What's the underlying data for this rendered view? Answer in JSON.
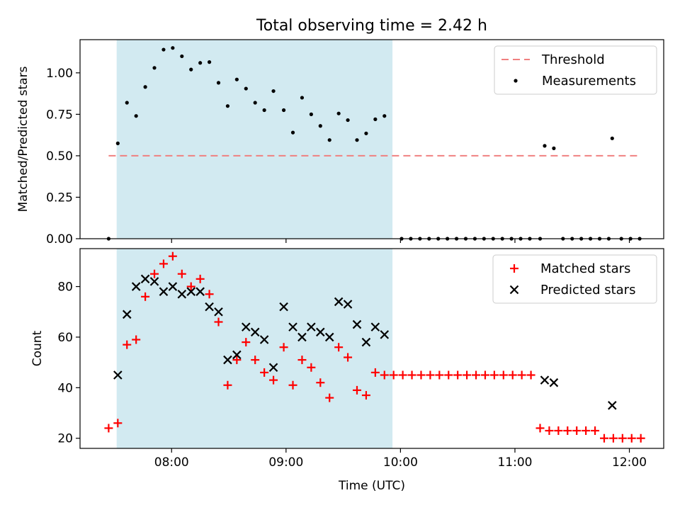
{
  "chart_data": {
    "type": "scatter",
    "title": "Total observing time = 2.42 h",
    "xlabel": "Time (UTC)",
    "x_ticks": [
      "08:00",
      "09:00",
      "10:00",
      "11:00",
      "12:00"
    ],
    "x_tick_hours": [
      8,
      9,
      10,
      11,
      12
    ],
    "xlim_hours": [
      7.2,
      12.3
    ],
    "shaded_interval_hours": [
      7.52,
      9.93
    ],
    "shade_color": "#add8e6",
    "top": {
      "ylabel": "Matched/Predicted stars",
      "ylim": [
        0,
        1.2
      ],
      "y_ticks": [
        "0.00",
        "0.25",
        "0.50",
        "0.75",
        "1.00"
      ],
      "y_tick_values": [
        0,
        0.25,
        0.5,
        0.75,
        1.0
      ],
      "threshold": {
        "name": "Threshold",
        "value": 0.5,
        "x_range_hours": [
          7.45,
          12.1
        ],
        "color": "#f08080"
      },
      "measurements": {
        "name": "Measurements",
        "color": "#000000",
        "points": [
          [
            7.45,
            0.0
          ],
          [
            7.53,
            0.575
          ],
          [
            7.61,
            0.82
          ],
          [
            7.69,
            0.74
          ],
          [
            7.77,
            0.915
          ],
          [
            7.85,
            1.03
          ],
          [
            7.93,
            1.14
          ],
          [
            8.01,
            1.15
          ],
          [
            8.09,
            1.1
          ],
          [
            8.17,
            1.02
          ],
          [
            8.25,
            1.06
          ],
          [
            8.33,
            1.065
          ],
          [
            8.41,
            0.94
          ],
          [
            8.49,
            0.8
          ],
          [
            8.57,
            0.96
          ],
          [
            8.65,
            0.905
          ],
          [
            8.73,
            0.82
          ],
          [
            8.81,
            0.775
          ],
          [
            8.89,
            0.89
          ],
          [
            8.98,
            0.775
          ],
          [
            9.06,
            0.64
          ],
          [
            9.14,
            0.85
          ],
          [
            9.22,
            0.75
          ],
          [
            9.3,
            0.68
          ],
          [
            9.38,
            0.595
          ],
          [
            9.46,
            0.755
          ],
          [
            9.54,
            0.715
          ],
          [
            9.62,
            0.595
          ],
          [
            9.7,
            0.635
          ],
          [
            9.78,
            0.72
          ],
          [
            9.86,
            0.74
          ],
          [
            10.01,
            0.0
          ],
          [
            10.09,
            0.0
          ],
          [
            10.17,
            0.0
          ],
          [
            10.25,
            0.0
          ],
          [
            10.33,
            0.0
          ],
          [
            10.41,
            0.0
          ],
          [
            10.49,
            0.0
          ],
          [
            10.57,
            0.0
          ],
          [
            10.65,
            0.0
          ],
          [
            10.73,
            0.0
          ],
          [
            10.81,
            0.0
          ],
          [
            10.89,
            0.0
          ],
          [
            10.97,
            0.0
          ],
          [
            11.05,
            0.0
          ],
          [
            11.13,
            0.0
          ],
          [
            11.22,
            0.0
          ],
          [
            11.26,
            0.56
          ],
          [
            11.34,
            0.545
          ],
          [
            11.42,
            0.0
          ],
          [
            11.5,
            0.0
          ],
          [
            11.58,
            0.0
          ],
          [
            11.66,
            0.0
          ],
          [
            11.74,
            0.0
          ],
          [
            11.82,
            0.0
          ],
          [
            11.85,
            0.605
          ],
          [
            11.93,
            0.0
          ],
          [
            12.01,
            0.0
          ],
          [
            12.09,
            0.0
          ]
        ]
      }
    },
    "bottom": {
      "ylabel": "Count",
      "ylim": [
        16,
        95
      ],
      "y_ticks": [
        "20",
        "40",
        "60",
        "80"
      ],
      "y_tick_values": [
        20,
        40,
        60,
        80
      ],
      "matched": {
        "name": "Matched stars",
        "color": "#ff0000",
        "points": [
          [
            7.45,
            24
          ],
          [
            7.53,
            26
          ],
          [
            7.61,
            57
          ],
          [
            7.69,
            59
          ],
          [
            7.77,
            76
          ],
          [
            7.85,
            85
          ],
          [
            7.93,
            89
          ],
          [
            8.01,
            92
          ],
          [
            8.09,
            85
          ],
          [
            8.17,
            80
          ],
          [
            8.25,
            83
          ],
          [
            8.33,
            77
          ],
          [
            8.41,
            66
          ],
          [
            8.49,
            41
          ],
          [
            8.57,
            51
          ],
          [
            8.65,
            58
          ],
          [
            8.73,
            51
          ],
          [
            8.81,
            46
          ],
          [
            8.89,
            43
          ],
          [
            8.98,
            56
          ],
          [
            9.06,
            41
          ],
          [
            9.14,
            51
          ],
          [
            9.22,
            48
          ],
          [
            9.3,
            42
          ],
          [
            9.38,
            36
          ],
          [
            9.46,
            56
          ],
          [
            9.54,
            52
          ],
          [
            9.62,
            39
          ],
          [
            9.7,
            37
          ],
          [
            9.78,
            46
          ],
          [
            9.86,
            45
          ],
          [
            9.94,
            45
          ],
          [
            10.02,
            45
          ],
          [
            10.1,
            45
          ],
          [
            10.18,
            45
          ],
          [
            10.26,
            45
          ],
          [
            10.34,
            45
          ],
          [
            10.42,
            45
          ],
          [
            10.5,
            45
          ],
          [
            10.58,
            45
          ],
          [
            10.66,
            45
          ],
          [
            10.74,
            45
          ],
          [
            10.82,
            45
          ],
          [
            10.9,
            45
          ],
          [
            10.98,
            45
          ],
          [
            11.06,
            45
          ],
          [
            11.14,
            45
          ],
          [
            11.22,
            24
          ],
          [
            11.3,
            23
          ],
          [
            11.38,
            23
          ],
          [
            11.46,
            23
          ],
          [
            11.54,
            23
          ],
          [
            11.62,
            23
          ],
          [
            11.7,
            23
          ],
          [
            11.78,
            20
          ],
          [
            11.86,
            20
          ],
          [
            11.94,
            20
          ],
          [
            12.02,
            20
          ],
          [
            12.1,
            20
          ]
        ]
      },
      "predicted": {
        "name": "Predicted stars",
        "color": "#000000",
        "points": [
          [
            7.53,
            45
          ],
          [
            7.61,
            69
          ],
          [
            7.69,
            80
          ],
          [
            7.77,
            83
          ],
          [
            7.85,
            82
          ],
          [
            7.93,
            78
          ],
          [
            8.01,
            80
          ],
          [
            8.09,
            77
          ],
          [
            8.17,
            78
          ],
          [
            8.25,
            78
          ],
          [
            8.33,
            72
          ],
          [
            8.41,
            70
          ],
          [
            8.49,
            51
          ],
          [
            8.57,
            53
          ],
          [
            8.65,
            64
          ],
          [
            8.73,
            62
          ],
          [
            8.81,
            59
          ],
          [
            8.89,
            48
          ],
          [
            8.98,
            72
          ],
          [
            9.06,
            64
          ],
          [
            9.14,
            60
          ],
          [
            9.22,
            64
          ],
          [
            9.3,
            62
          ],
          [
            9.38,
            60
          ],
          [
            9.46,
            74
          ],
          [
            9.54,
            73
          ],
          [
            9.62,
            65
          ],
          [
            9.7,
            58
          ],
          [
            9.78,
            64
          ],
          [
            9.86,
            61
          ],
          [
            11.26,
            43
          ],
          [
            11.34,
            42
          ],
          [
            11.85,
            33
          ]
        ]
      }
    },
    "legend_placement": "upper right"
  }
}
